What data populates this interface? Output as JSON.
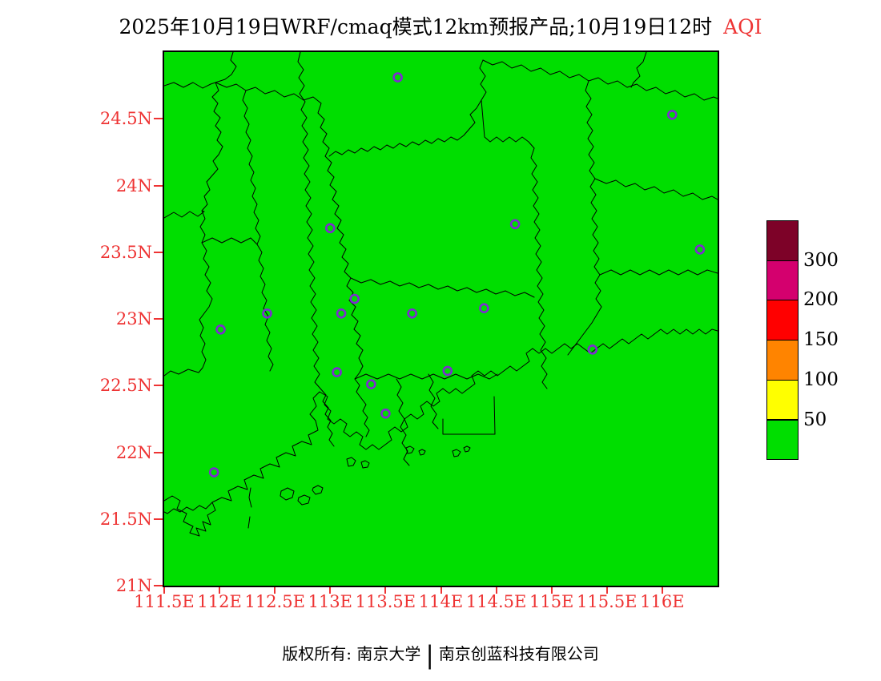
{
  "title": {
    "text": "2025年10月19日WRF/cmaq模式12km预报产品;10月19日12时",
    "aqi_label": "AQI",
    "text_color": "#000000",
    "aqi_color": "#ee3333"
  },
  "map": {
    "field_color": "#00de00",
    "boundary_color": "#000000",
    "lon_min": 111.5,
    "lon_max": 116.5,
    "lat_min": 21.0,
    "lat_max": 25.0
  },
  "axes": {
    "color": "#ee3333",
    "lat_ticks": [
      {
        "label": "24.5N",
        "value": 24.5
      },
      {
        "label": "24N",
        "value": 24.0
      },
      {
        "label": "23.5N",
        "value": 23.5
      },
      {
        "label": "23N",
        "value": 23.0
      },
      {
        "label": "22.5N",
        "value": 22.5
      },
      {
        "label": "22N",
        "value": 22.0
      },
      {
        "label": "21.5N",
        "value": 21.5
      },
      {
        "label": "21N",
        "value": 21.0
      }
    ],
    "lon_ticks": [
      {
        "label": "111.5E",
        "value": 111.5
      },
      {
        "label": "112E",
        "value": 112.0
      },
      {
        "label": "112.5E",
        "value": 112.5
      },
      {
        "label": "113E",
        "value": 113.0
      },
      {
        "label": "113.5E",
        "value": 113.5
      },
      {
        "label": "114E",
        "value": 114.0
      },
      {
        "label": "114.5E",
        "value": 114.5
      },
      {
        "label": "115E",
        "value": 115.0
      },
      {
        "label": "115.5E",
        "value": 115.5
      },
      {
        "label": "116E",
        "value": 116.0
      }
    ]
  },
  "legend": {
    "labels": [
      "300",
      "200",
      "150",
      "100",
      "50"
    ],
    "colors_top_to_bottom": [
      "#7d0228",
      "#d4006e",
      "#ff0000",
      "#ff8400",
      "#ffff00",
      "#00de00"
    ],
    "label_color": "#000000"
  },
  "stations": {
    "marker_color": "#7e2ad2",
    "points": [
      {
        "lon": 113.61,
        "lat": 24.81
      },
      {
        "lon": 116.09,
        "lat": 24.53
      },
      {
        "lon": 113.0,
        "lat": 23.68
      },
      {
        "lon": 114.67,
        "lat": 23.71
      },
      {
        "lon": 116.34,
        "lat": 23.52
      },
      {
        "lon": 113.22,
        "lat": 23.15
      },
      {
        "lon": 113.1,
        "lat": 23.04
      },
      {
        "lon": 112.43,
        "lat": 23.04
      },
      {
        "lon": 113.74,
        "lat": 23.04
      },
      {
        "lon": 114.39,
        "lat": 23.08
      },
      {
        "lon": 112.01,
        "lat": 22.92
      },
      {
        "lon": 115.37,
        "lat": 22.77
      },
      {
        "lon": 113.06,
        "lat": 22.6
      },
      {
        "lon": 114.06,
        "lat": 22.61
      },
      {
        "lon": 113.37,
        "lat": 22.51
      },
      {
        "lon": 113.5,
        "lat": 22.29
      },
      {
        "lon": 111.95,
        "lat": 21.85
      }
    ]
  },
  "footer": {
    "text_left": "版权所有: 南京大学",
    "separator": "|",
    "text_right": "南京创蓝科技有限公司"
  },
  "chart_data": {
    "type": "heatmap",
    "title": "2025年10月19日WRF/cmaq模式12km预报产品;10月19日12时 AQI",
    "variable": "AQI",
    "xlabel": "longitude",
    "ylabel": "latitude",
    "xlim": [
      111.5,
      116.5
    ],
    "ylim": [
      21.0,
      25.0
    ],
    "x_tick_labels": [
      "111.5E",
      "112E",
      "112.5E",
      "113E",
      "113.5E",
      "114E",
      "114.5E",
      "115E",
      "115.5E",
      "116E"
    ],
    "y_tick_labels": [
      "21N",
      "21.5N",
      "22N",
      "22.5N",
      "23N",
      "23.5N",
      "24N",
      "24.5N"
    ],
    "field": "uniform AQI value below 50 across entire domain (all green)",
    "levels": [
      50,
      100,
      150,
      200,
      300
    ],
    "level_colors_low_to_high": [
      "#00de00",
      "#ffff00",
      "#ff8400",
      "#ff0000",
      "#d4006e",
      "#7d0228"
    ],
    "legend_position": "right",
    "grid": false,
    "station_markers_lonlat": [
      [
        113.61,
        24.81
      ],
      [
        116.09,
        24.53
      ],
      [
        113.0,
        23.68
      ],
      [
        114.67,
        23.71
      ],
      [
        116.34,
        23.52
      ],
      [
        113.22,
        23.15
      ],
      [
        113.1,
        23.04
      ],
      [
        112.43,
        23.04
      ],
      [
        113.74,
        23.04
      ],
      [
        114.39,
        23.08
      ],
      [
        112.01,
        22.92
      ],
      [
        115.37,
        22.77
      ],
      [
        113.06,
        22.6
      ],
      [
        114.06,
        22.61
      ],
      [
        113.37,
        22.51
      ],
      [
        113.5,
        22.29
      ],
      [
        111.95,
        21.85
      ]
    ]
  }
}
